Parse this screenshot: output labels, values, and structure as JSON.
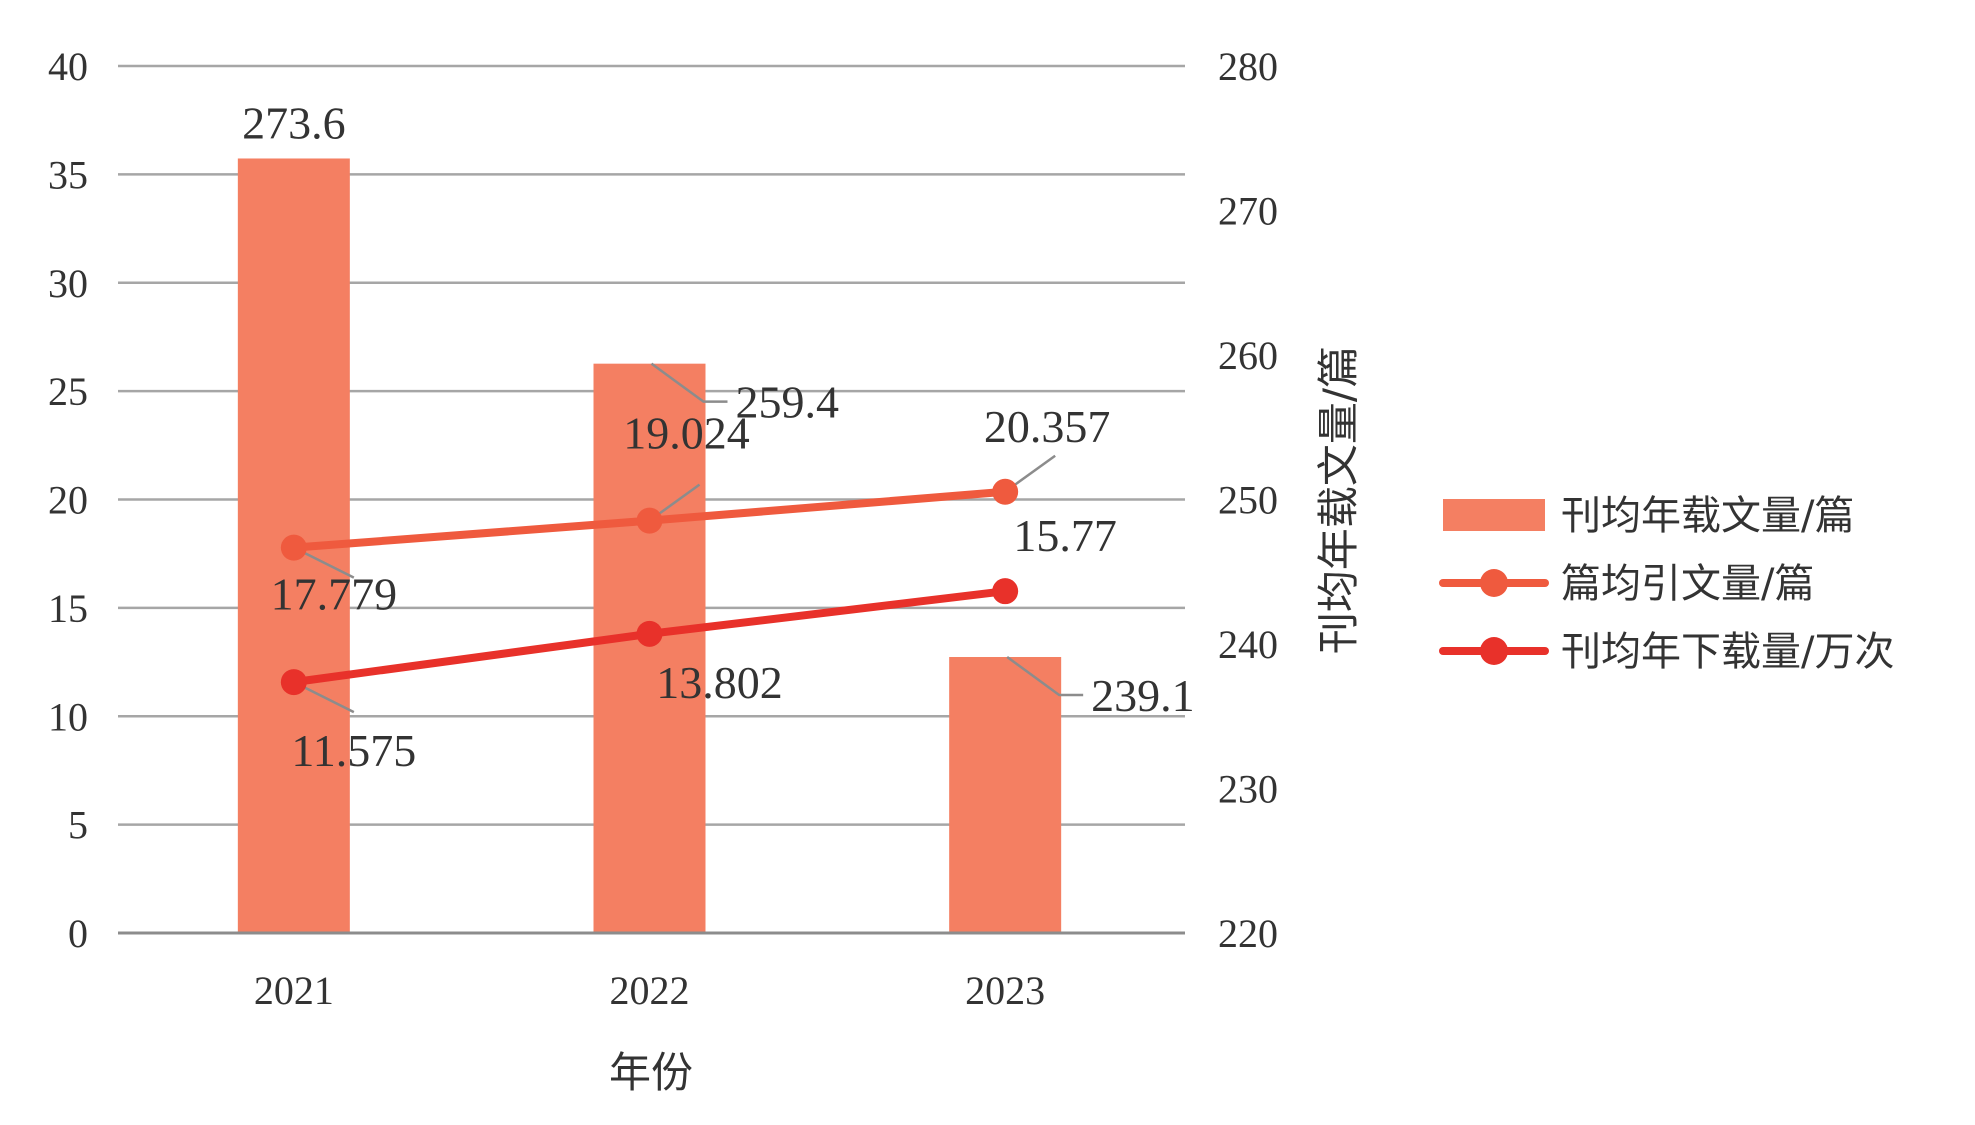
{
  "chart_data": {
    "type": "bar+line",
    "categories": [
      "2021",
      "2022",
      "2023"
    ],
    "xlabel": "年份",
    "y_left": {
      "ticks": [
        "0",
        "5",
        "10",
        "15",
        "20",
        "25",
        "30",
        "35",
        "40"
      ],
      "range": [
        0,
        40
      ]
    },
    "y_right": {
      "label": "刊均年载文量/篇",
      "ticks": [
        "220",
        "230",
        "240",
        "250",
        "260",
        "270",
        "280"
      ],
      "range": [
        220,
        280
      ]
    },
    "grid": true,
    "legend_position": "right",
    "series": [
      {
        "name": "刊均年载文量/篇",
        "kind": "bar",
        "axis": "right",
        "color": "#f47f62",
        "values": [
          273.6,
          259.4,
          239.1
        ],
        "labels": [
          "273.6",
          "259.4",
          "239.1"
        ]
      },
      {
        "name": "篇均引文量/篇",
        "kind": "line",
        "axis": "left",
        "color": "#ef5a3e",
        "values": [
          17.779,
          19.024,
          20.357
        ],
        "labels": [
          "17.779",
          "19.024",
          "20.357"
        ]
      },
      {
        "name": "刊均年下载量/万次",
        "kind": "line",
        "axis": "left",
        "color": "#e8312a",
        "values": [
          11.575,
          13.802,
          15.77
        ],
        "labels": [
          "11.575",
          "13.802",
          "15.77"
        ]
      }
    ]
  }
}
